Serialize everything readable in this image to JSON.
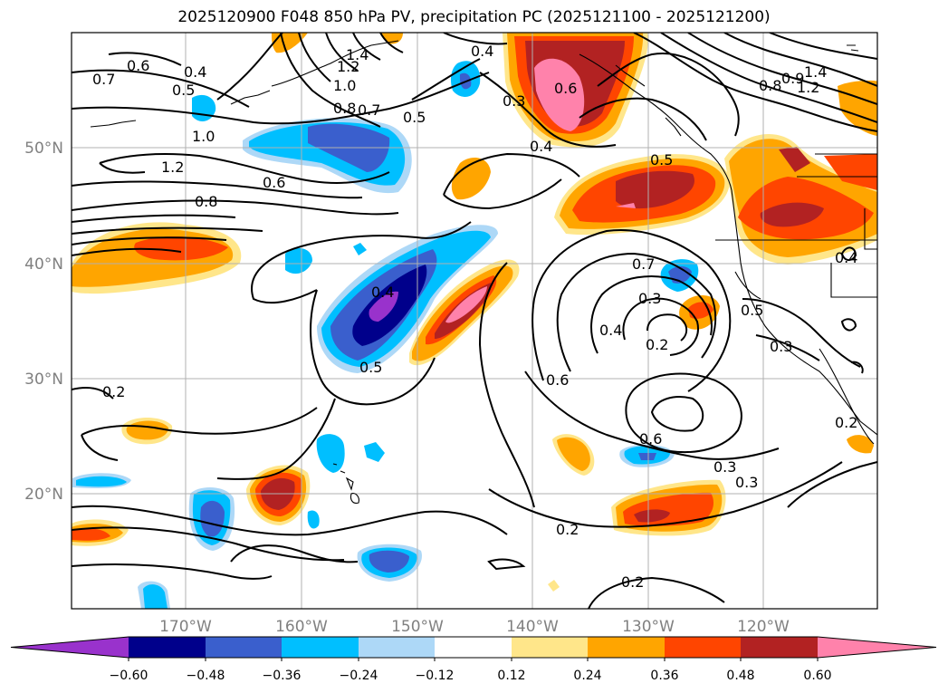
{
  "title": "2025120900 F048 850 hPa PV, precipitation PC (2025121100 - 2025121200)",
  "map": {
    "lon_ticks": [
      "170°W",
      "160°W",
      "150°W",
      "140°W",
      "130°W",
      "120°W"
    ],
    "lat_ticks": [
      "50°N",
      "40°N",
      "30°N",
      "20°N"
    ],
    "contour_labels": [
      "0.6",
      "0.4",
      "0.7",
      "0.5",
      "1.0",
      "1.2",
      "0.8",
      "0.6",
      "0.8",
      "1.0",
      "1.2",
      "1.4",
      "0.5",
      "0.7",
      "0.4",
      "0.3",
      "0.6",
      "0.4",
      "0.5",
      "0.7",
      "0.3",
      "0.4",
      "0.2",
      "0.6",
      "0.5",
      "0.2",
      "0.6",
      "0.3",
      "0.3",
      "0.2",
      "0.2",
      "0.3",
      "0.5",
      "0.8",
      "0.9",
      "1.2",
      "1.4",
      "0.4",
      "0.2",
      "0.4"
    ],
    "colors": {
      "neg_060": "#9932cc",
      "neg_048": "#00008b",
      "neg_036": "#3a5fcd",
      "neg_024": "#00bfff",
      "neg_012": "#add8f7",
      "pos_012": "#ffe68a",
      "pos_024": "#ffa500",
      "pos_036": "#ff4500",
      "pos_048": "#b22222",
      "pos_060": "#ff82ab"
    }
  },
  "colorbar": {
    "ticks": [
      "−0.60",
      "−0.48",
      "−0.36",
      "−0.24",
      "−0.12",
      "0.12",
      "0.24",
      "0.36",
      "0.48",
      "0.60"
    ],
    "colors": [
      "#9932cc",
      "#00008b",
      "#3a5fcd",
      "#00bfff",
      "#add8f7",
      "#ffffff",
      "#ffe68a",
      "#ffa500",
      "#ff4500",
      "#b22222",
      "#ff82ab"
    ]
  }
}
